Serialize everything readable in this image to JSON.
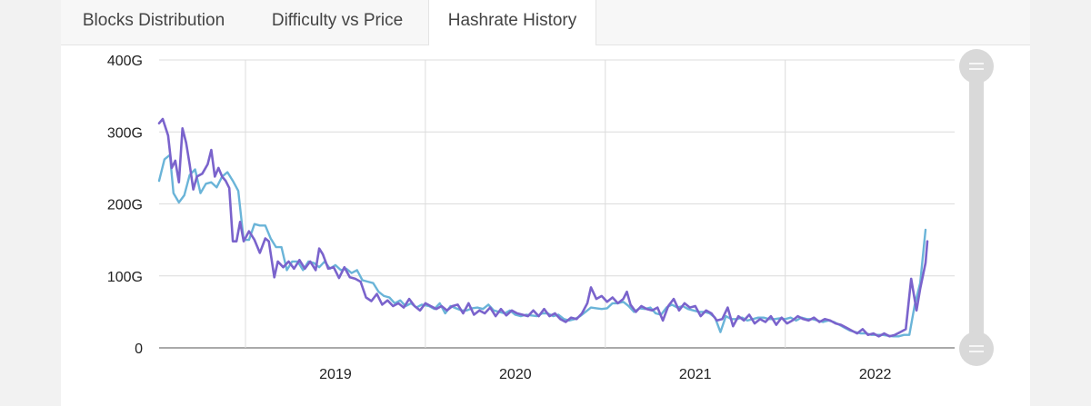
{
  "tabs": [
    {
      "label": "Blocks Distribution",
      "active": false
    },
    {
      "label": "Difficulty vs Price",
      "active": false
    },
    {
      "label": "Hashrate History",
      "active": true
    }
  ],
  "chart_data": {
    "type": "line",
    "title": "",
    "xlabel": "",
    "ylabel": "",
    "xlim": [
      2018.02,
      2022.3
    ],
    "ylim": [
      0,
      400
    ],
    "y_ticks": [
      "400G",
      "300G",
      "200G",
      "100G",
      "0"
    ],
    "x_ticks": [
      "2019",
      "2020",
      "2021",
      "2022"
    ],
    "grid": true,
    "series": [
      {
        "color": "#6ab4d8",
        "points": [
          [
            2018.02,
            232
          ],
          [
            2018.05,
            262
          ],
          [
            2018.08,
            268
          ],
          [
            2018.1,
            215
          ],
          [
            2018.13,
            202
          ],
          [
            2018.16,
            212
          ],
          [
            2018.19,
            240
          ],
          [
            2018.22,
            248
          ],
          [
            2018.25,
            215
          ],
          [
            2018.28,
            228
          ],
          [
            2018.31,
            230
          ],
          [
            2018.34,
            223
          ],
          [
            2018.37,
            238
          ],
          [
            2018.4,
            244
          ],
          [
            2018.43,
            232
          ],
          [
            2018.46,
            218
          ],
          [
            2018.49,
            150
          ],
          [
            2018.52,
            150
          ],
          [
            2018.55,
            172
          ],
          [
            2018.58,
            170
          ],
          [
            2018.61,
            170
          ],
          [
            2018.64,
            152
          ],
          [
            2018.67,
            140
          ],
          [
            2018.7,
            140
          ],
          [
            2018.73,
            108
          ],
          [
            2018.76,
            120
          ],
          [
            2018.79,
            120
          ],
          [
            2018.82,
            108
          ],
          [
            2018.85,
            120
          ],
          [
            2018.88,
            118
          ],
          [
            2018.91,
            112
          ],
          [
            2018.94,
            120
          ],
          [
            2018.97,
            110
          ],
          [
            2019.0,
            115
          ],
          [
            2019.03,
            108
          ],
          [
            2019.06,
            110
          ],
          [
            2019.09,
            104
          ],
          [
            2019.12,
            108
          ],
          [
            2019.15,
            94
          ],
          [
            2019.18,
            92
          ],
          [
            2019.21,
            90
          ],
          [
            2019.24,
            78
          ],
          [
            2019.27,
            72
          ],
          [
            2019.3,
            70
          ],
          [
            2019.33,
            62
          ],
          [
            2019.36,
            66
          ],
          [
            2019.39,
            58
          ],
          [
            2019.42,
            62
          ],
          [
            2019.45,
            56
          ],
          [
            2019.48,
            60
          ],
          [
            2019.52,
            58
          ],
          [
            2019.55,
            54
          ],
          [
            2019.58,
            62
          ],
          [
            2019.61,
            48
          ],
          [
            2019.64,
            58
          ],
          [
            2019.67,
            55
          ],
          [
            2019.7,
            52
          ],
          [
            2019.73,
            52
          ],
          [
            2019.76,
            55
          ],
          [
            2019.79,
            56
          ],
          [
            2019.82,
            54
          ],
          [
            2019.85,
            60
          ],
          [
            2019.88,
            52
          ],
          [
            2019.91,
            50
          ],
          [
            2019.94,
            48
          ],
          [
            2019.97,
            52
          ],
          [
            2020.0,
            46
          ],
          [
            2020.03,
            44
          ],
          [
            2020.06,
            46
          ],
          [
            2020.09,
            45
          ],
          [
            2020.12,
            44
          ],
          [
            2020.15,
            48
          ],
          [
            2020.18,
            48
          ],
          [
            2020.21,
            44
          ],
          [
            2020.24,
            46
          ],
          [
            2020.27,
            40
          ],
          [
            2020.3,
            38
          ],
          [
            2020.33,
            40
          ],
          [
            2020.36,
            44
          ],
          [
            2020.39,
            50
          ],
          [
            2020.42,
            56
          ],
          [
            2020.45,
            55
          ],
          [
            2020.48,
            54
          ],
          [
            2020.51,
            55
          ],
          [
            2020.54,
            62
          ],
          [
            2020.57,
            62
          ],
          [
            2020.6,
            64
          ],
          [
            2020.63,
            58
          ],
          [
            2020.66,
            50
          ],
          [
            2020.69,
            55
          ],
          [
            2020.72,
            54
          ],
          [
            2020.75,
            56
          ],
          [
            2020.78,
            48
          ],
          [
            2020.81,
            46
          ],
          [
            2020.84,
            56
          ],
          [
            2020.87,
            60
          ],
          [
            2020.9,
            56
          ],
          [
            2020.93,
            58
          ],
          [
            2020.96,
            54
          ],
          [
            2020.99,
            52
          ],
          [
            2021.02,
            50
          ],
          [
            2021.05,
            50
          ],
          [
            2021.08,
            48
          ],
          [
            2021.11,
            42
          ],
          [
            2021.14,
            22
          ],
          [
            2021.17,
            44
          ],
          [
            2021.2,
            40
          ],
          [
            2021.23,
            40
          ],
          [
            2021.26,
            42
          ],
          [
            2021.29,
            38
          ],
          [
            2021.32,
            40
          ],
          [
            2021.35,
            42
          ],
          [
            2021.38,
            42
          ],
          [
            2021.41,
            40
          ],
          [
            2021.44,
            40
          ],
          [
            2021.47,
            41
          ],
          [
            2021.5,
            40
          ],
          [
            2021.53,
            42
          ],
          [
            2021.56,
            38
          ],
          [
            2021.59,
            42
          ],
          [
            2021.62,
            40
          ],
          [
            2021.65,
            40
          ],
          [
            2021.68,
            38
          ],
          [
            2021.71,
            36
          ],
          [
            2021.74,
            38
          ],
          [
            2021.77,
            36
          ],
          [
            2021.8,
            32
          ],
          [
            2021.83,
            28
          ],
          [
            2021.86,
            24
          ],
          [
            2021.89,
            22
          ],
          [
            2021.92,
            20
          ],
          [
            2021.95,
            20
          ],
          [
            2021.98,
            18
          ],
          [
            2022.01,
            18
          ],
          [
            2022.04,
            18
          ],
          [
            2022.07,
            17
          ],
          [
            2022.1,
            16
          ],
          [
            2022.13,
            16
          ],
          [
            2022.16,
            18
          ],
          [
            2022.19,
            18
          ],
          [
            2022.22,
            60
          ],
          [
            2022.25,
            90
          ],
          [
            2022.28,
            164
          ]
        ]
      },
      {
        "color": "#7a63cc",
        "points": [
          [
            2018.02,
            312
          ],
          [
            2018.04,
            318
          ],
          [
            2018.07,
            295
          ],
          [
            2018.09,
            250
          ],
          [
            2018.11,
            260
          ],
          [
            2018.13,
            230
          ],
          [
            2018.15,
            305
          ],
          [
            2018.17,
            285
          ],
          [
            2018.19,
            255
          ],
          [
            2018.21,
            220
          ],
          [
            2018.23,
            238
          ],
          [
            2018.26,
            242
          ],
          [
            2018.29,
            255
          ],
          [
            2018.31,
            275
          ],
          [
            2018.33,
            238
          ],
          [
            2018.35,
            250
          ],
          [
            2018.37,
            238
          ],
          [
            2018.39,
            232
          ],
          [
            2018.41,
            222
          ],
          [
            2018.43,
            148
          ],
          [
            2018.45,
            148
          ],
          [
            2018.47,
            175
          ],
          [
            2018.49,
            148
          ],
          [
            2018.52,
            162
          ],
          [
            2018.55,
            150
          ],
          [
            2018.58,
            132
          ],
          [
            2018.61,
            152
          ],
          [
            2018.63,
            148
          ],
          [
            2018.66,
            98
          ],
          [
            2018.68,
            120
          ],
          [
            2018.71,
            112
          ],
          [
            2018.74,
            120
          ],
          [
            2018.77,
            110
          ],
          [
            2018.8,
            122
          ],
          [
            2018.83,
            110
          ],
          [
            2018.86,
            120
          ],
          [
            2018.89,
            108
          ],
          [
            2018.91,
            138
          ],
          [
            2018.93,
            130
          ],
          [
            2018.96,
            110
          ],
          [
            2018.99,
            112
          ],
          [
            2019.02,
            97
          ],
          [
            2019.05,
            112
          ],
          [
            2019.08,
            98
          ],
          [
            2019.11,
            96
          ],
          [
            2019.14,
            92
          ],
          [
            2019.17,
            70
          ],
          [
            2019.2,
            65
          ],
          [
            2019.23,
            75
          ],
          [
            2019.26,
            60
          ],
          [
            2019.29,
            66
          ],
          [
            2019.32,
            58
          ],
          [
            2019.35,
            62
          ],
          [
            2019.38,
            56
          ],
          [
            2019.41,
            68
          ],
          [
            2019.44,
            58
          ],
          [
            2019.47,
            52
          ],
          [
            2019.5,
            62
          ],
          [
            2019.53,
            58
          ],
          [
            2019.56,
            54
          ],
          [
            2019.59,
            58
          ],
          [
            2019.62,
            52
          ],
          [
            2019.65,
            58
          ],
          [
            2019.68,
            60
          ],
          [
            2019.71,
            48
          ],
          [
            2019.74,
            62
          ],
          [
            2019.77,
            46
          ],
          [
            2019.8,
            52
          ],
          [
            2019.83,
            48
          ],
          [
            2019.86,
            56
          ],
          [
            2019.89,
            44
          ],
          [
            2019.92,
            54
          ],
          [
            2019.95,
            45
          ],
          [
            2019.98,
            52
          ],
          [
            2020.01,
            48
          ],
          [
            2020.04,
            46
          ],
          [
            2020.07,
            44
          ],
          [
            2020.1,
            52
          ],
          [
            2020.13,
            44
          ],
          [
            2020.16,
            54
          ],
          [
            2020.19,
            44
          ],
          [
            2020.22,
            48
          ],
          [
            2020.25,
            40
          ],
          [
            2020.28,
            36
          ],
          [
            2020.31,
            42
          ],
          [
            2020.34,
            40
          ],
          [
            2020.37,
            48
          ],
          [
            2020.4,
            62
          ],
          [
            2020.42,
            84
          ],
          [
            2020.45,
            68
          ],
          [
            2020.48,
            72
          ],
          [
            2020.51,
            64
          ],
          [
            2020.54,
            70
          ],
          [
            2020.57,
            62
          ],
          [
            2020.6,
            68
          ],
          [
            2020.62,
            78
          ],
          [
            2020.64,
            60
          ],
          [
            2020.67,
            50
          ],
          [
            2020.7,
            58
          ],
          [
            2020.73,
            54
          ],
          [
            2020.76,
            52
          ],
          [
            2020.79,
            56
          ],
          [
            2020.82,
            38
          ],
          [
            2020.85,
            58
          ],
          [
            2020.88,
            68
          ],
          [
            2020.91,
            52
          ],
          [
            2020.94,
            62
          ],
          [
            2020.97,
            56
          ],
          [
            2021.0,
            58
          ],
          [
            2021.03,
            44
          ],
          [
            2021.06,
            52
          ],
          [
            2021.09,
            48
          ],
          [
            2021.12,
            38
          ],
          [
            2021.15,
            40
          ],
          [
            2021.18,
            56
          ],
          [
            2021.21,
            30
          ],
          [
            2021.24,
            44
          ],
          [
            2021.27,
            38
          ],
          [
            2021.3,
            46
          ],
          [
            2021.33,
            34
          ],
          [
            2021.36,
            40
          ],
          [
            2021.39,
            36
          ],
          [
            2021.42,
            44
          ],
          [
            2021.45,
            32
          ],
          [
            2021.48,
            42
          ],
          [
            2021.51,
            34
          ],
          [
            2021.54,
            38
          ],
          [
            2021.57,
            44
          ],
          [
            2021.6,
            40
          ],
          [
            2021.63,
            38
          ],
          [
            2021.66,
            42
          ],
          [
            2021.69,
            36
          ],
          [
            2021.72,
            40
          ],
          [
            2021.75,
            38
          ],
          [
            2021.78,
            34
          ],
          [
            2021.81,
            32
          ],
          [
            2021.84,
            28
          ],
          [
            2021.87,
            24
          ],
          [
            2021.9,
            20
          ],
          [
            2021.93,
            26
          ],
          [
            2021.96,
            18
          ],
          [
            2021.99,
            20
          ],
          [
            2022.02,
            16
          ],
          [
            2022.05,
            20
          ],
          [
            2022.08,
            16
          ],
          [
            2022.11,
            18
          ],
          [
            2022.14,
            22
          ],
          [
            2022.17,
            26
          ],
          [
            2022.2,
            96
          ],
          [
            2022.23,
            52
          ],
          [
            2022.25,
            82
          ],
          [
            2022.28,
            118
          ],
          [
            2022.29,
            148
          ]
        ]
      }
    ],
    "scrollbar": {
      "start": 0.0,
      "end": 1.0
    }
  }
}
